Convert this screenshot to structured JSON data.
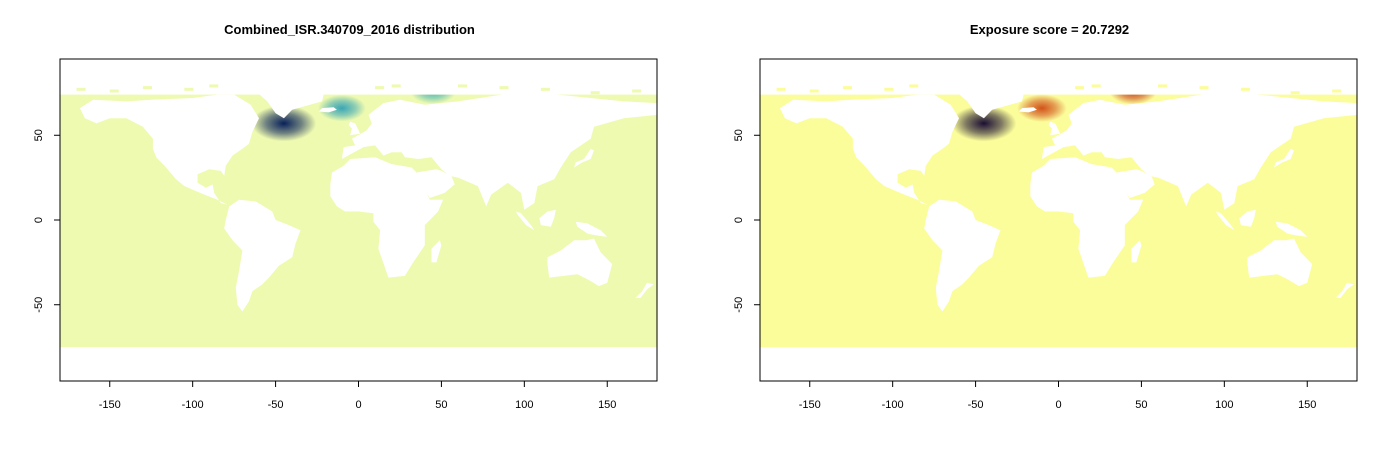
{
  "chart_data": [
    {
      "type": "heatmap",
      "title": "Combined_ISR.340709_2016 distribution",
      "xlabel": "",
      "ylabel": "",
      "xlim": [
        -180,
        180
      ],
      "ylim": [
        -95,
        95
      ],
      "x_ticks": [
        -150,
        -100,
        -50,
        0,
        50,
        100,
        150
      ],
      "y_ticks": [
        -50,
        0,
        50
      ],
      "ocean_color": "#eefab0",
      "land_color": "#ffffff",
      "ocean_lat_range": [
        -75,
        74
      ],
      "hotspots": [
        {
          "lon": -45,
          "lat": 57,
          "intensity": 1.0,
          "color": "#08205a"
        },
        {
          "lon": -10,
          "lat": 66,
          "intensity": 0.55,
          "color": "#3aa6b5"
        },
        {
          "lon": 45,
          "lat": 76,
          "intensity": 0.5,
          "color": "#4db6b5"
        }
      ],
      "grid": false
    },
    {
      "type": "heatmap",
      "title": "Exposure score = 20.7292",
      "xlabel": "",
      "ylabel": "",
      "xlim": [
        -180,
        180
      ],
      "ylim": [
        -95,
        95
      ],
      "x_ticks": [
        -150,
        -100,
        -50,
        0,
        50,
        100,
        150
      ],
      "y_ticks": [
        -50,
        0,
        50
      ],
      "ocean_color": "#fbfd9a",
      "land_color": "#ffffff",
      "ocean_lat_range": [
        -75,
        74
      ],
      "hotspots": [
        {
          "lon": -45,
          "lat": 57,
          "intensity": 1.0,
          "color": "#1a0e33"
        },
        {
          "lon": -10,
          "lat": 66,
          "intensity": 0.6,
          "color": "#d2521a"
        },
        {
          "lon": 45,
          "lat": 76,
          "intensity": 0.55,
          "color": "#c8401a"
        }
      ],
      "grid": false
    }
  ]
}
